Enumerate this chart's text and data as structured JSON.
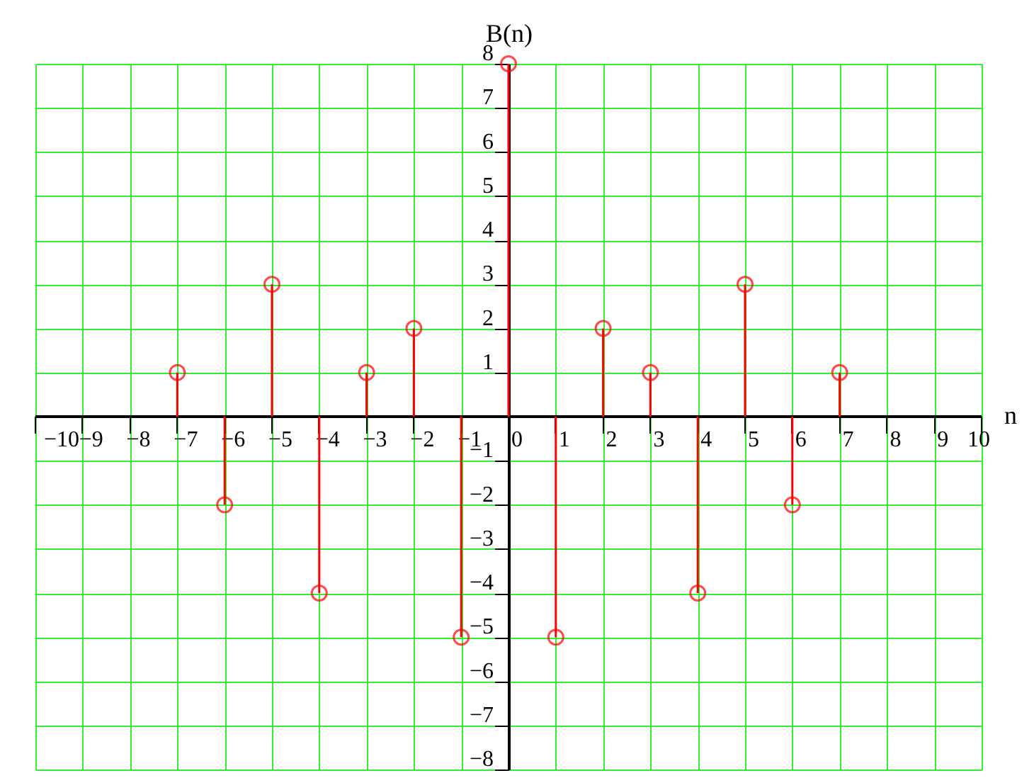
{
  "chart_data": {
    "type": "lollipop",
    "xlabel": "n",
    "ylabel": "B(n)",
    "x": [
      -7,
      -6,
      -5,
      -4,
      -3,
      -2,
      -1,
      0,
      1,
      2,
      3,
      4,
      5,
      6,
      7
    ],
    "series": [
      {
        "color": "#ff0000",
        "values": [
          1,
          -2,
          3,
          -4,
          1,
          2,
          -5,
          8,
          -5,
          2,
          1,
          -4,
          3,
          -2,
          1
        ]
      }
    ],
    "xlim": [
      -10,
      10
    ],
    "xticks": [
      -10,
      -9,
      -8,
      -7,
      -6,
      -5,
      -4,
      -3,
      -2,
      -1,
      0,
      1,
      2,
      3,
      4,
      5,
      6,
      7,
      8,
      9,
      10
    ],
    "ylim": [
      -8,
      8
    ],
    "yticks": [
      -8,
      -7,
      -6,
      -5,
      -4,
      -3,
      -2,
      -1,
      1,
      2,
      3,
      4,
      5,
      6,
      7,
      8
    ],
    "grid": true,
    "marker": "circle"
  }
}
